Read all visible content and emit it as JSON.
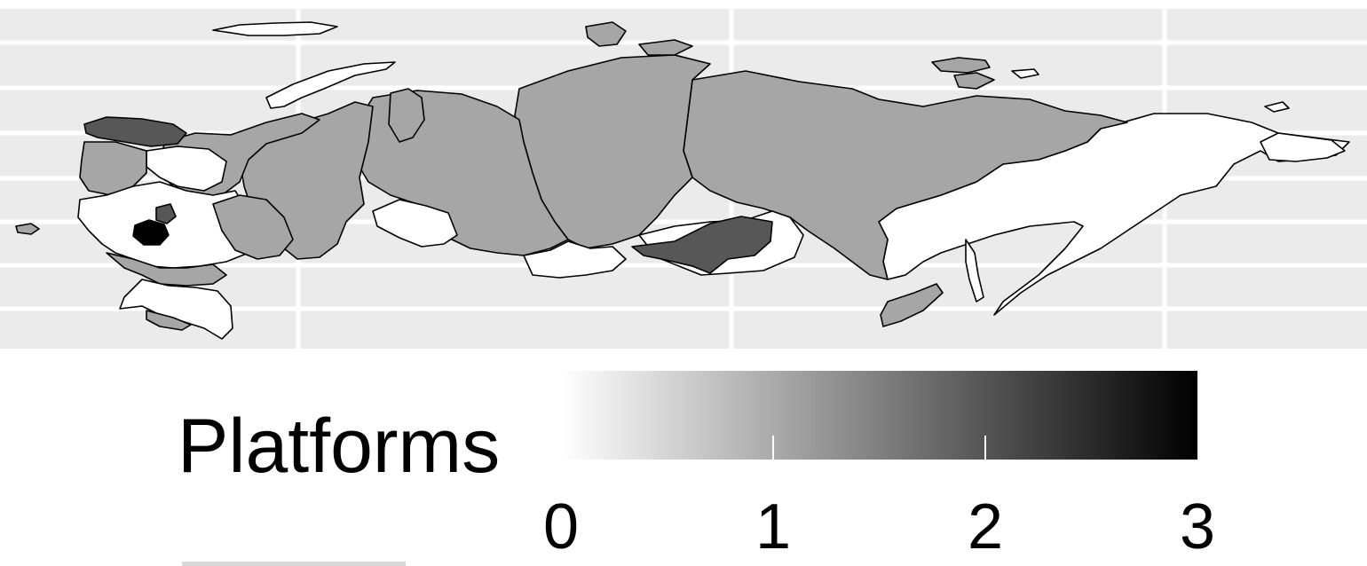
{
  "legend": {
    "title": "Platforms",
    "min": 0,
    "max": 3,
    "ticks": [
      0,
      1,
      2,
      3
    ],
    "tick_labels": [
      "0",
      "1",
      "2",
      "3"
    ],
    "low_color": "#ffffff",
    "high_color": "#000000"
  },
  "map": {
    "panel_background": "#ebebeb",
    "grid_color": "#ffffff",
    "region_border": "#000000",
    "region_fill_levels": {
      "0": "#ffffff",
      "1": "#a6a6a6",
      "2": "#575757",
      "3": "#000000"
    }
  }
}
